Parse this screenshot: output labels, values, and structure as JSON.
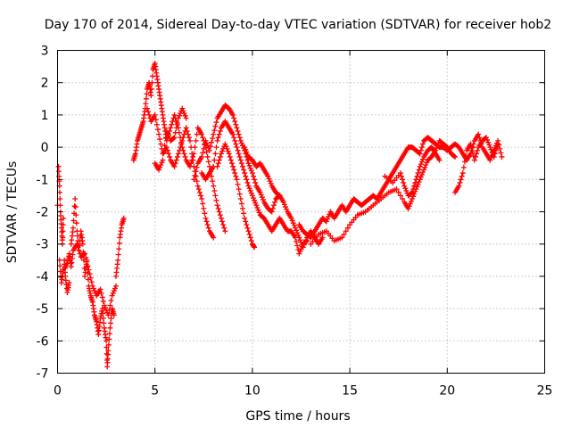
{
  "chart_data": {
    "type": "scatter",
    "title": "Day 170 of 2014, Sidereal Day-to-day VTEC variation (SDTVAR) for receiver hob2",
    "xlabel": "GPS time / hours",
    "ylabel": "SDTVAR / TECUs",
    "xlim": [
      0,
      25
    ],
    "ylim": [
      -7,
      3
    ],
    "xticks": [
      0,
      5,
      10,
      15,
      20,
      25
    ],
    "yticks": [
      -7,
      -6,
      -5,
      -4,
      -3,
      -2,
      -1,
      0,
      1,
      2,
      3
    ],
    "grid": true,
    "marker": "+",
    "series": [
      {
        "name": "SDTVAR",
        "color": "#ff0000",
        "points": [
          [
            0.0,
            -1.8
          ],
          [
            0.05,
            -0.6
          ],
          [
            0.1,
            -1.2
          ],
          [
            0.15,
            -2.0
          ],
          [
            0.2,
            -2.5
          ],
          [
            0.25,
            -3.0
          ],
          [
            0.3,
            -2.2
          ],
          [
            0.35,
            -3.5
          ],
          [
            0.4,
            -4.0
          ],
          [
            0.5,
            -4.5
          ],
          [
            0.6,
            -4.2
          ],
          [
            0.7,
            -3.0
          ],
          [
            0.8,
            -2.5
          ],
          [
            0.9,
            -1.6
          ],
          [
            1.0,
            -2.6
          ],
          [
            1.1,
            -3.2
          ],
          [
            1.2,
            -2.6
          ],
          [
            1.3,
            -3.0
          ],
          [
            1.4,
            -4.0
          ],
          [
            1.5,
            -3.5
          ],
          [
            1.6,
            -4.3
          ],
          [
            1.7,
            -4.6
          ],
          [
            1.8,
            -4.8
          ],
          [
            1.9,
            -5.2
          ],
          [
            2.0,
            -5.4
          ],
          [
            2.1,
            -5.8
          ],
          [
            2.2,
            -5.3
          ],
          [
            2.3,
            -5.0
          ],
          [
            2.4,
            -5.6
          ],
          [
            2.5,
            -6.0
          ],
          [
            2.55,
            -6.8
          ],
          [
            2.6,
            -6.3
          ],
          [
            2.7,
            -5.6
          ],
          [
            2.8,
            -5.0
          ],
          [
            2.9,
            -5.2
          ],
          [
            3.0,
            -4.0
          ],
          [
            3.1,
            -3.5
          ],
          [
            3.2,
            -2.8
          ],
          [
            3.3,
            -2.4
          ],
          [
            3.4,
            -2.2
          ],
          [
            0.1,
            -3.5
          ],
          [
            0.2,
            -4.2
          ],
          [
            0.3,
            -3.8
          ],
          [
            0.5,
            -3.6
          ],
          [
            0.6,
            -3.3
          ],
          [
            0.7,
            -3.7
          ],
          [
            0.8,
            -3.2
          ],
          [
            1.0,
            -3.0
          ],
          [
            1.2,
            -3.4
          ],
          [
            1.4,
            -3.3
          ],
          [
            1.6,
            -3.8
          ],
          [
            1.8,
            -4.3
          ],
          [
            2.0,
            -4.6
          ],
          [
            2.2,
            -4.4
          ],
          [
            2.4,
            -4.9
          ],
          [
            2.6,
            -5.2
          ],
          [
            2.8,
            -4.6
          ],
          [
            3.0,
            -4.3
          ],
          [
            3.9,
            -0.4
          ],
          [
            4.0,
            -0.2
          ],
          [
            4.1,
            0.2
          ],
          [
            4.2,
            0.4
          ],
          [
            4.3,
            0.6
          ],
          [
            4.4,
            0.8
          ],
          [
            4.5,
            1.2
          ],
          [
            4.6,
            1.8
          ],
          [
            4.7,
            2.0
          ],
          [
            4.8,
            1.6
          ],
          [
            4.9,
            2.4
          ],
          [
            5.0,
            2.6
          ],
          [
            5.1,
            2.2
          ],
          [
            5.2,
            1.8
          ],
          [
            5.3,
            1.4
          ],
          [
            5.4,
            1.0
          ],
          [
            5.5,
            0.6
          ],
          [
            5.6,
            0.2
          ],
          [
            5.8,
            0.6
          ],
          [
            6.0,
            1.0
          ],
          [
            6.2,
            0.6
          ],
          [
            6.4,
            0.0
          ],
          [
            6.6,
            -0.4
          ],
          [
            6.8,
            -0.6
          ],
          [
            7.0,
            -0.2
          ],
          [
            7.2,
            0.6
          ],
          [
            7.4,
            0.4
          ],
          [
            7.6,
            0.0
          ],
          [
            7.8,
            -0.6
          ],
          [
            8.0,
            -1.2
          ],
          [
            8.2,
            -1.8
          ],
          [
            8.4,
            -2.2
          ],
          [
            8.6,
            -2.6
          ],
          [
            4.6,
            1.2
          ],
          [
            4.8,
            0.8
          ],
          [
            5.0,
            1.0
          ],
          [
            5.2,
            0.4
          ],
          [
            5.4,
            -0.2
          ],
          [
            5.6,
            0.0
          ],
          [
            5.8,
            -0.4
          ],
          [
            6.0,
            -0.6
          ],
          [
            6.2,
            -0.2
          ],
          [
            6.4,
            0.2
          ],
          [
            6.6,
            0.6
          ],
          [
            6.8,
            0.2
          ],
          [
            7.0,
            -0.6
          ],
          [
            7.2,
            -1.2
          ],
          [
            7.4,
            -1.6
          ],
          [
            7.6,
            -2.2
          ],
          [
            7.8,
            -2.6
          ],
          [
            8.0,
            -2.8
          ],
          [
            5.0,
            -0.5
          ],
          [
            5.2,
            -0.7
          ],
          [
            5.4,
            -0.4
          ],
          [
            5.6,
            0.5
          ],
          [
            5.8,
            0.2
          ],
          [
            6.0,
            0.3
          ],
          [
            6.2,
            0.9
          ],
          [
            6.4,
            1.2
          ],
          [
            6.6,
            0.9
          ],
          [
            7.0,
            -1.0
          ],
          [
            7.2,
            -0.5
          ],
          [
            7.4,
            -0.3
          ],
          [
            7.6,
            0.2
          ],
          [
            7.8,
            -0.1
          ],
          [
            8.0,
            0.4
          ],
          [
            8.2,
            0.9
          ],
          [
            8.4,
            1.1
          ],
          [
            8.6,
            1.3
          ],
          [
            8.8,
            1.2
          ],
          [
            9.0,
            1.0
          ],
          [
            9.2,
            0.6
          ],
          [
            9.4,
            0.2
          ],
          [
            9.6,
            -0.1
          ],
          [
            9.8,
            -0.5
          ],
          [
            10.0,
            -0.8
          ],
          [
            10.2,
            -1.2
          ],
          [
            10.4,
            -1.4
          ],
          [
            10.6,
            -1.7
          ],
          [
            10.8,
            -1.9
          ],
          [
            11.0,
            -2.0
          ],
          [
            11.2,
            -1.6
          ],
          [
            11.4,
            -1.5
          ],
          [
            11.6,
            -1.7
          ],
          [
            11.8,
            -2.0
          ],
          [
            12.0,
            -2.2
          ],
          [
            12.2,
            -2.5
          ],
          [
            12.4,
            -2.8
          ],
          [
            12.6,
            -3.1
          ],
          [
            12.8,
            -2.8
          ],
          [
            13.0,
            -2.6
          ],
          [
            13.2,
            -2.8
          ],
          [
            13.4,
            -3.0
          ],
          [
            13.6,
            -2.8
          ],
          [
            7.4,
            -0.8
          ],
          [
            7.6,
            -1.0
          ],
          [
            7.8,
            -0.8
          ],
          [
            8.0,
            -0.6
          ],
          [
            8.2,
            0.2
          ],
          [
            8.4,
            0.6
          ],
          [
            8.6,
            0.8
          ],
          [
            8.8,
            0.6
          ],
          [
            9.0,
            0.4
          ],
          [
            9.2,
            0.0
          ],
          [
            9.4,
            -0.4
          ],
          [
            9.6,
            -0.8
          ],
          [
            9.8,
            -1.2
          ],
          [
            10.0,
            -1.5
          ],
          [
            10.2,
            -1.8
          ],
          [
            10.4,
            -2.1
          ],
          [
            10.6,
            -2.2
          ],
          [
            10.8,
            -2.4
          ],
          [
            11.0,
            -2.6
          ],
          [
            11.2,
            -2.4
          ],
          [
            11.4,
            -2.2
          ],
          [
            11.6,
            -2.4
          ],
          [
            11.8,
            -2.6
          ],
          [
            12.0,
            -2.6
          ],
          [
            12.2,
            -2.8
          ],
          [
            12.4,
            -3.3
          ],
          [
            12.6,
            -3.0
          ],
          [
            12.8,
            -2.9
          ],
          [
            8.2,
            -0.6
          ],
          [
            8.4,
            -0.2
          ],
          [
            8.6,
            0.1
          ],
          [
            8.8,
            -0.2
          ],
          [
            9.0,
            -0.6
          ],
          [
            9.2,
            -1.0
          ],
          [
            9.4,
            -1.6
          ],
          [
            9.6,
            -2.2
          ],
          [
            9.8,
            -2.6
          ],
          [
            10.0,
            -3.0
          ],
          [
            10.1,
            -3.1
          ],
          [
            9.6,
            0.0
          ],
          [
            9.8,
            -0.3
          ],
          [
            10.0,
            -0.4
          ],
          [
            10.2,
            -0.6
          ],
          [
            10.4,
            -0.5
          ],
          [
            10.6,
            -0.7
          ],
          [
            10.8,
            -0.9
          ],
          [
            11.0,
            -1.2
          ],
          [
            11.2,
            -1.4
          ],
          [
            11.4,
            -1.5
          ],
          [
            12.4,
            -2.4
          ],
          [
            12.6,
            -2.6
          ],
          [
            12.8,
            -2.7
          ],
          [
            13.0,
            -2.8
          ],
          [
            13.2,
            -2.6
          ],
          [
            13.4,
            -2.4
          ],
          [
            13.6,
            -2.2
          ],
          [
            13.8,
            -2.3
          ],
          [
            14.0,
            -2.0
          ],
          [
            14.2,
            -2.2
          ],
          [
            14.4,
            -2.0
          ],
          [
            14.6,
            -1.8
          ],
          [
            14.8,
            -2.0
          ],
          [
            15.0,
            -1.8
          ],
          [
            15.2,
            -1.6
          ],
          [
            15.4,
            -1.7
          ],
          [
            15.6,
            -1.8
          ],
          [
            15.8,
            -1.7
          ],
          [
            16.0,
            -1.6
          ],
          [
            16.2,
            -1.5
          ],
          [
            16.4,
            -1.6
          ],
          [
            16.6,
            -1.4
          ],
          [
            16.8,
            -1.2
          ],
          [
            17.0,
            -1.0
          ],
          [
            17.2,
            -0.8
          ],
          [
            17.4,
            -0.6
          ],
          [
            17.6,
            -0.4
          ],
          [
            17.8,
            -0.2
          ],
          [
            18.0,
            0.0
          ],
          [
            18.2,
            0.0
          ],
          [
            18.4,
            -0.1
          ],
          [
            18.6,
            -0.2
          ],
          [
            18.8,
            0.2
          ],
          [
            19.0,
            0.3
          ],
          [
            19.2,
            0.2
          ],
          [
            19.4,
            0.1
          ],
          [
            19.6,
            0.0
          ],
          [
            19.8,
            0.0
          ],
          [
            20.0,
            -0.1
          ],
          [
            20.2,
            0.0
          ],
          [
            20.4,
            0.1
          ],
          [
            20.6,
            0.0
          ],
          [
            20.8,
            -0.2
          ],
          [
            21.0,
            -0.4
          ],
          [
            21.2,
            -0.2
          ],
          [
            21.4,
            0.2
          ],
          [
            21.6,
            0.4
          ],
          [
            21.8,
            0.0
          ],
          [
            22.0,
            -0.2
          ],
          [
            22.2,
            -0.4
          ],
          [
            22.4,
            -0.1
          ],
          [
            22.6,
            0.2
          ],
          [
            22.8,
            -0.3
          ],
          [
            13.0,
            -3.0
          ],
          [
            13.4,
            -2.7
          ],
          [
            13.8,
            -2.6
          ],
          [
            14.2,
            -2.9
          ],
          [
            14.6,
            -2.8
          ],
          [
            15.0,
            -2.4
          ],
          [
            15.4,
            -2.1
          ],
          [
            15.8,
            -2.0
          ],
          [
            16.2,
            -1.8
          ],
          [
            16.6,
            -1.6
          ],
          [
            17.0,
            -1.4
          ],
          [
            17.4,
            -1.3
          ],
          [
            17.8,
            -1.7
          ],
          [
            18.0,
            -1.9
          ],
          [
            18.2,
            -1.6
          ],
          [
            18.4,
            -1.3
          ],
          [
            18.6,
            -1.0
          ],
          [
            18.8,
            -0.7
          ],
          [
            19.0,
            -0.4
          ],
          [
            19.2,
            -0.3
          ],
          [
            19.4,
            -0.1
          ],
          [
            19.6,
            0.2
          ],
          [
            19.8,
            0.1
          ],
          [
            20.0,
            0.0
          ],
          [
            20.2,
            -0.2
          ],
          [
            20.4,
            -0.3
          ],
          [
            16.8,
            -0.9
          ],
          [
            17.2,
            -1.1
          ],
          [
            17.6,
            -0.8
          ],
          [
            17.8,
            -1.2
          ],
          [
            18.0,
            -1.5
          ],
          [
            18.2,
            -1.4
          ],
          [
            18.4,
            -1.0
          ],
          [
            18.6,
            -0.6
          ],
          [
            18.8,
            -0.3
          ],
          [
            19.0,
            -0.1
          ],
          [
            19.2,
            0.0
          ],
          [
            19.4,
            -0.2
          ],
          [
            19.6,
            -0.4
          ],
          [
            20.4,
            -1.4
          ],
          [
            20.6,
            -1.2
          ],
          [
            20.8,
            -0.8
          ],
          [
            21.0,
            -0.1
          ],
          [
            21.2,
            0.1
          ],
          [
            21.4,
            -0.4
          ],
          [
            21.6,
            0.0
          ],
          [
            21.8,
            0.2
          ],
          [
            22.0,
            0.3
          ],
          [
            22.2,
            0.0
          ],
          [
            22.4,
            -0.3
          ],
          [
            22.6,
            0.1
          ]
        ]
      }
    ]
  }
}
